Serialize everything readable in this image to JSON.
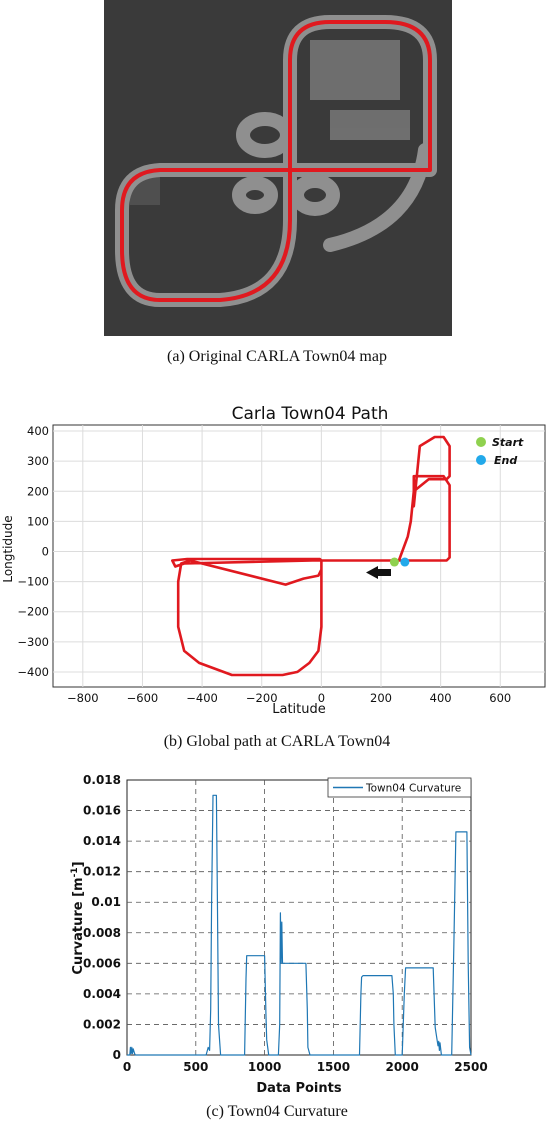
{
  "captions": {
    "a": "(a) Original CARLA Town04 map",
    "b": "(b) Global path at CARLA Town04",
    "c": "(c) Town04 Curvature"
  },
  "colors": {
    "map_bg": "#3a3a3a",
    "road": "#8f8f8f",
    "path_red": "#e0191f",
    "start_green": "#8fd14f",
    "end_blue": "#22a9ea",
    "curvature_line": "#1f77b4"
  },
  "chart_data": [
    {
      "id": "path",
      "type": "line",
      "title": "Carla Town04 Path",
      "xlabel": "Latitude",
      "ylabel": "Longtidude",
      "xlim": [
        -900,
        750
      ],
      "ylim": [
        -450,
        420
      ],
      "xticks": [
        -800,
        -600,
        -400,
        -200,
        0,
        200,
        400,
        600
      ],
      "yticks": [
        400,
        300,
        200,
        100,
        0,
        -100,
        -200,
        -300,
        -400
      ],
      "grid": true,
      "legend": {
        "position": "top-right",
        "entries": [
          {
            "label": "Start",
            "color": "#8fd14f"
          },
          {
            "label": "End",
            "color": "#22a9ea"
          }
        ]
      },
      "series": [
        {
          "x": [
            250,
            420,
            430,
            430,
            410,
            310,
            310,
            330,
            380,
            410,
            430,
            430,
            420,
            360,
            310,
            300,
            290,
            260,
            0,
            0,
            -10,
            -60,
            -120,
            -440,
            -470,
            -480,
            -480,
            -460,
            -410,
            -300,
            -190,
            -130,
            -80,
            -40,
            -10,
            0,
            0,
            -5,
            -240,
            -450,
            -500,
            -490,
            -460,
            -30,
            0,
            50,
            120,
            180,
            240,
            280
          ],
          "y": [
            -30,
            -30,
            -20,
            220,
            250,
            250,
            150,
            350,
            380,
            380,
            350,
            250,
            240,
            240,
            200,
            100,
            50,
            -30,
            -30,
            -60,
            -80,
            -90,
            -110,
            -30,
            -40,
            -100,
            -250,
            -330,
            -370,
            -410,
            -410,
            -410,
            -400,
            -370,
            -330,
            -250,
            -30,
            -25,
            -25,
            -25,
            -30,
            -50,
            -40,
            -30,
            -30,
            -30,
            -30,
            -30,
            -30,
            -30
          ]
        }
      ],
      "markers": [
        {
          "name": "Start",
          "x": 245,
          "y": -35
        },
        {
          "name": "End",
          "x": 280,
          "y": -35
        }
      ]
    },
    {
      "id": "curvature",
      "type": "line",
      "xlabel": "Data Points",
      "ylabel": "Curvature [m^-1]",
      "xlim": [
        0,
        2500
      ],
      "ylim": [
        0,
        0.018
      ],
      "xticks": [
        0,
        500,
        1000,
        1500,
        2000,
        2500
      ],
      "yticks": [
        0,
        0.002,
        0.004,
        0.006,
        0.008,
        0.01,
        0.012,
        0.014,
        0.016,
        0.018
      ],
      "grid": true,
      "legend": {
        "position": "top-right",
        "entries": [
          {
            "label": "Town04 Curvature"
          }
        ]
      },
      "series": [
        {
          "name": "Town04 Curvature",
          "x": [
            0,
            20,
            25,
            30,
            35,
            40,
            45,
            55,
            60,
            70,
            575,
            590,
            600,
            608,
            615,
            625,
            640,
            650,
            658,
            665,
            680,
            855,
            865,
            870,
            900,
            1000,
            1005,
            1010,
            1015,
            1030,
            1100,
            1110,
            1115,
            1120,
            1125,
            1130,
            1300,
            1310,
            1315,
            1330,
            1690,
            1700,
            1705,
            1715,
            1925,
            1935,
            1940,
            1950,
            2000,
            2015,
            2025,
            2035,
            2225,
            2240,
            2250,
            2255,
            2260,
            2265,
            2270,
            2275,
            2285,
            2360,
            2375,
            2390,
            2470,
            2480,
            2490,
            2500
          ],
          "y": [
            0,
            0,
            0.0005,
            0.0001,
            0.0005,
            0.0001,
            0.0004,
            0.0001,
            0,
            0,
            0,
            0.0005,
            0.0003,
            0.003,
            0.01,
            0.017,
            0.017,
            0.017,
            0.0095,
            0.002,
            0,
            0,
            0.005,
            0.0065,
            0.0065,
            0.0065,
            0.0045,
            0.0025,
            0.001,
            0,
            0,
            0.002,
            0.0093,
            0.006,
            0.0087,
            0.006,
            0.006,
            0.003,
            0.0005,
            0,
            0,
            0.004,
            0.0051,
            0.0052,
            0.0052,
            0.004,
            0.002,
            0,
            0,
            0.004,
            0.0057,
            0.0057,
            0.0057,
            0.0018,
            0.0012,
            0.0009,
            0.0006,
            0.0009,
            0.0003,
            0.0008,
            0,
            0,
            0.007,
            0.0146,
            0.0146,
            0.006,
            0.0005,
            0
          ]
        }
      ]
    }
  ]
}
